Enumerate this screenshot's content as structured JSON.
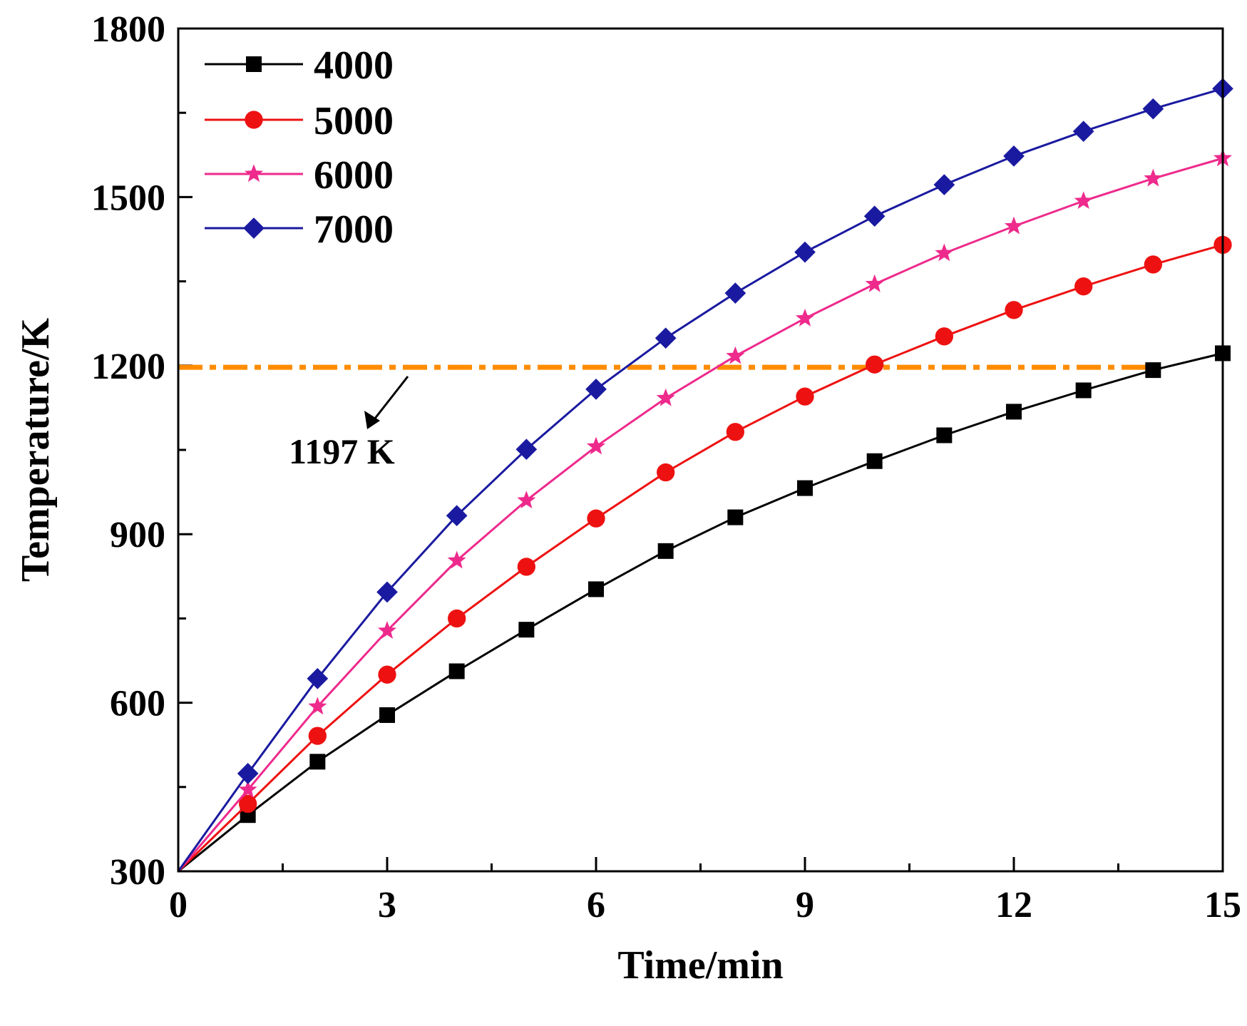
{
  "chart_data": {
    "type": "line",
    "xlabel": "Time/min",
    "ylabel": "Temperature/K",
    "xlim": [
      0,
      15
    ],
    "ylim": [
      300,
      1800
    ],
    "xticks": [
      0,
      3,
      6,
      9,
      12,
      15
    ],
    "xtick_labels": [
      "0",
      "3",
      "6",
      "9",
      "12",
      "15"
    ],
    "xminor": [
      1.5,
      4.5,
      7.5,
      10.5,
      13.5
    ],
    "yticks": [
      300,
      600,
      900,
      1200,
      1500,
      1800
    ],
    "ytick_labels": [
      "300",
      "600",
      "900",
      "1200",
      "1500",
      "1800"
    ],
    "yminor": [
      450,
      750,
      1050,
      1350,
      1650
    ],
    "legend_position": "top-left",
    "x": [
      0,
      1,
      2,
      3,
      4,
      5,
      6,
      7,
      8,
      9,
      10,
      11,
      12,
      13,
      14,
      15
    ],
    "series": [
      {
        "name": "4000",
        "marker": "square",
        "color": "#000000",
        "values": [
          300,
          400,
          495,
          578,
          656,
          730,
          802,
          870,
          930,
          982,
          1030,
          1076,
          1118,
          1156,
          1192,
          1222
        ]
      },
      {
        "name": "5000",
        "marker": "circle",
        "color": "#ee1111",
        "values": [
          300,
          420,
          541,
          650,
          750,
          842,
          928,
          1010,
          1082,
          1145,
          1202,
          1252,
          1299,
          1341,
          1380,
          1415
        ]
      },
      {
        "name": "6000",
        "marker": "star",
        "color": "#ee2a8c",
        "values": [
          300,
          445,
          593,
          728,
          853,
          960,
          1056,
          1142,
          1217,
          1284,
          1345,
          1400,
          1448,
          1493,
          1533,
          1569
        ]
      },
      {
        "name": "7000",
        "marker": "diamond",
        "color": "#1a1aa0",
        "values": [
          300,
          474,
          643,
          797,
          933,
          1051,
          1158,
          1249,
          1329,
          1402,
          1466,
          1522,
          1573,
          1617,
          1657,
          1693
        ]
      }
    ],
    "reference_line": {
      "value": 1197,
      "x_end": 14,
      "style": "dash-dot",
      "color": "#ff8c00"
    },
    "annotation": {
      "text": "1197 K",
      "x": 2.7,
      "y": 1060
    }
  }
}
